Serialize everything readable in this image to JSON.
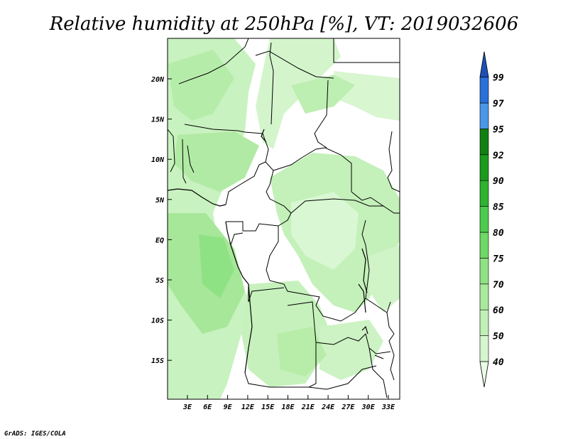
{
  "title": "Relative humidity at 250hPa [%], VT: 2019032606",
  "credit": "GrADS: IGES/COLA",
  "latitude_ticks": [
    "20N",
    "15N",
    "10N",
    "5N",
    "EQ",
    "5S",
    "10S",
    "15S"
  ],
  "longitude_ticks": [
    "3E",
    "6E",
    "9E",
    "12E",
    "15E",
    "18E",
    "21E",
    "24E",
    "27E",
    "30E",
    "33E"
  ],
  "colorbar": {
    "labels": [
      "40",
      "50",
      "60",
      "70",
      "75",
      "80",
      "85",
      "90",
      "92",
      "95",
      "97",
      "99"
    ],
    "colors": [
      "#eafbe6",
      "#d6f6cf",
      "#c0f0b6",
      "#a9ea9d",
      "#8fe283",
      "#6fd866",
      "#4dcb4d",
      "#2fb22f",
      "#1c9a1c",
      "#118011",
      "#4a97e8",
      "#2a70d8",
      "#1c50b8"
    ]
  }
}
